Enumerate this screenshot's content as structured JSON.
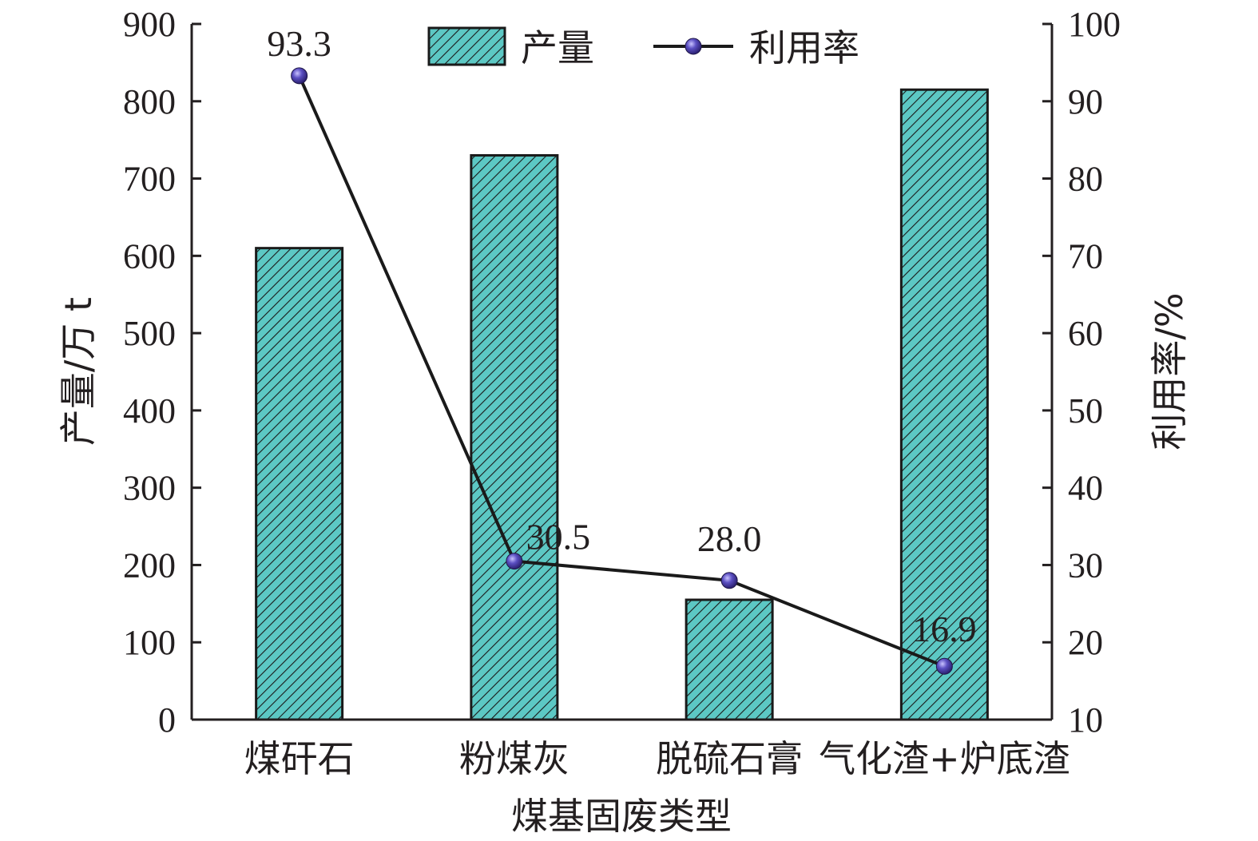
{
  "chart_data": {
    "type": "bar",
    "categories": [
      "煤矸石",
      "粉煤灰",
      "脱硫石膏",
      "气化渣+炉底渣"
    ],
    "series": [
      {
        "name": "产量",
        "type": "bar",
        "axis": "left",
        "values": [
          610,
          730,
          155,
          815
        ],
        "color": "#5cc8c4",
        "pattern": "diagonal-hatch"
      },
      {
        "name": "利用率",
        "type": "line",
        "axis": "right",
        "values": [
          93.3,
          30.5,
          28.0,
          16.9
        ],
        "data_labels": [
          "93.3",
          "30.5",
          "28.0",
          "16.9"
        ],
        "line_color": "#1a1a1a",
        "marker_color": "#4b3fa8"
      }
    ],
    "xlabel": "煤基固废类型",
    "ylabel": "产量/万 t",
    "y2label": "利用率/%",
    "ylim": [
      0,
      900
    ],
    "y2lim": [
      10,
      100
    ],
    "yticks": [
      "0",
      "100",
      "200",
      "300",
      "400",
      "500",
      "600",
      "700",
      "800",
      "900"
    ],
    "y2ticks": [
      "10",
      "20",
      "30",
      "40",
      "50",
      "60",
      "70",
      "80",
      "90",
      "100"
    ],
    "legend_position": "top-center",
    "grid": false
  }
}
